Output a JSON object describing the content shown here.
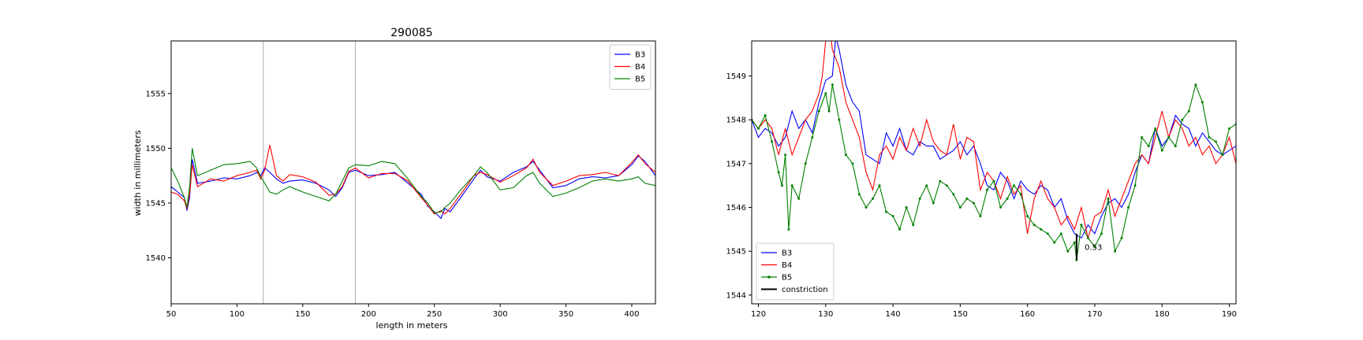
{
  "chart_data": [
    {
      "type": "line",
      "title": "290085",
      "xlabel": "length in meters",
      "ylabel": "width in millimeters",
      "xlim": [
        50,
        418
      ],
      "ylim": [
        1535.8,
        1559.8
      ],
      "xticks": [
        50,
        100,
        150,
        200,
        250,
        300,
        350,
        400
      ],
      "yticks": [
        1540,
        1545,
        1550,
        1555
      ],
      "vlines": [
        120,
        190
      ],
      "legend_position": "upper right",
      "grid": false,
      "series": [
        {
          "name": "B3",
          "color": "#0000ff",
          "x": [
            50,
            55,
            60,
            62,
            64,
            66,
            70,
            80,
            90,
            100,
            110,
            115,
            118,
            121,
            125,
            130,
            135,
            140,
            150,
            160,
            170,
            175,
            180,
            185,
            190,
            200,
            210,
            220,
            230,
            240,
            245,
            250,
            255,
            258,
            262,
            270,
            280,
            285,
            290,
            300,
            310,
            320,
            325,
            330,
            340,
            350,
            360,
            370,
            380,
            390,
            400,
            405,
            410,
            418
          ],
          "y": [
            1546.5,
            1546.0,
            1545.5,
            1544.3,
            1545.5,
            1549.0,
            1546.8,
            1547.0,
            1547.3,
            1547.2,
            1547.5,
            1547.8,
            1547.5,
            1548.2,
            1547.8,
            1547.2,
            1546.8,
            1547.0,
            1547.1,
            1546.8,
            1546.2,
            1545.6,
            1546.4,
            1547.8,
            1548.0,
            1547.5,
            1547.6,
            1547.8,
            1546.8,
            1545.8,
            1544.7,
            1544.2,
            1543.6,
            1544.5,
            1544.2,
            1545.5,
            1547.2,
            1548.0,
            1547.4,
            1547.0,
            1547.8,
            1548.3,
            1548.8,
            1548.0,
            1546.4,
            1546.6,
            1547.2,
            1547.4,
            1547.3,
            1547.5,
            1548.5,
            1549.3,
            1548.8,
            1547.5
          ]
        },
        {
          "name": "B4",
          "color": "#ff0000",
          "x": [
            50,
            55,
            60,
            62,
            64,
            66,
            70,
            80,
            90,
            100,
            110,
            115,
            118,
            121,
            125,
            130,
            135,
            140,
            150,
            160,
            170,
            175,
            180,
            185,
            190,
            200,
            210,
            220,
            230,
            240,
            245,
            250,
            255,
            258,
            262,
            270,
            280,
            285,
            290,
            300,
            310,
            320,
            325,
            330,
            340,
            350,
            360,
            370,
            380,
            390,
            400,
            405,
            410,
            418
          ],
          "y": [
            1546.0,
            1545.8,
            1545.2,
            1544.5,
            1545.8,
            1548.5,
            1546.5,
            1547.2,
            1547.0,
            1547.5,
            1547.8,
            1548.0,
            1547.2,
            1548.0,
            1550.3,
            1547.5,
            1547.0,
            1547.6,
            1547.4,
            1546.9,
            1545.7,
            1545.8,
            1546.5,
            1547.9,
            1548.2,
            1547.3,
            1547.7,
            1547.7,
            1547.0,
            1545.5,
            1544.8,
            1544.0,
            1544.3,
            1544.0,
            1544.5,
            1545.8,
            1547.5,
            1547.8,
            1547.6,
            1546.9,
            1547.5,
            1548.2,
            1549.0,
            1547.8,
            1546.6,
            1547.0,
            1547.5,
            1547.6,
            1547.8,
            1547.5,
            1548.7,
            1549.4,
            1548.6,
            1547.8
          ]
        },
        {
          "name": "B5",
          "color": "#008000",
          "x": [
            50,
            55,
            60,
            62,
            64,
            66,
            70,
            80,
            90,
            100,
            110,
            115,
            118,
            121,
            125,
            130,
            135,
            140,
            150,
            160,
            170,
            175,
            180,
            185,
            190,
            200,
            210,
            220,
            230,
            240,
            245,
            250,
            255,
            258,
            262,
            270,
            280,
            285,
            290,
            300,
            310,
            320,
            325,
            330,
            340,
            350,
            360,
            370,
            380,
            390,
            400,
            405,
            410,
            418
          ],
          "y": [
            1548.2,
            1547.0,
            1545.5,
            1544.6,
            1546.5,
            1550.0,
            1547.5,
            1548.0,
            1548.5,
            1548.6,
            1548.8,
            1548.2,
            1547.4,
            1546.8,
            1546.0,
            1545.8,
            1546.2,
            1546.5,
            1546.0,
            1545.6,
            1545.2,
            1545.8,
            1547.0,
            1548.2,
            1548.5,
            1548.4,
            1548.8,
            1548.6,
            1547.2,
            1545.6,
            1545.0,
            1544.1,
            1544.2,
            1544.6,
            1545.0,
            1546.2,
            1547.5,
            1548.3,
            1547.8,
            1546.2,
            1546.4,
            1547.5,
            1547.8,
            1546.8,
            1545.6,
            1545.9,
            1546.4,
            1547.0,
            1547.2,
            1547.0,
            1547.2,
            1547.4,
            1546.8,
            1546.6
          ]
        }
      ]
    },
    {
      "type": "line",
      "xlim": [
        119,
        191
      ],
      "ylim": [
        1543.8,
        1549.8
      ],
      "xticks": [
        120,
        130,
        140,
        150,
        160,
        170,
        180,
        190
      ],
      "yticks": [
        1544,
        1545,
        1546,
        1547,
        1548,
        1549
      ],
      "legend_position": "lower left",
      "grid": false,
      "annotation": {
        "text": "0.53",
        "x": 169.8,
        "y": 1545.1
      },
      "constriction": {
        "name": "constriction",
        "color": "#000000",
        "x": 167.3,
        "y0": 1544.8,
        "y1": 1545.4
      },
      "series": [
        {
          "name": "B3",
          "color": "#0000ff",
          "marker": false,
          "x": [
            119,
            120,
            121,
            122,
            123,
            124,
            125,
            126,
            127,
            128,
            129,
            130,
            131,
            131.5,
            132,
            133,
            134,
            135,
            136,
            137,
            138,
            139,
            140,
            141,
            142,
            143,
            144,
            145,
            146,
            147,
            148,
            149,
            150,
            151,
            152,
            153,
            154,
            155,
            156,
            157,
            158,
            159,
            160,
            161,
            162,
            163,
            164,
            165,
            166,
            167,
            168,
            169,
            170,
            171,
            172,
            173,
            174,
            175,
            176,
            177,
            178,
            179,
            180,
            181,
            182,
            183,
            184,
            185,
            186,
            187,
            188,
            189,
            190,
            191
          ],
          "y": [
            1548.0,
            1547.6,
            1547.8,
            1547.7,
            1547.4,
            1547.6,
            1548.2,
            1547.8,
            1548.0,
            1547.7,
            1548.4,
            1548.9,
            1549.0,
            1549.9,
            1549.6,
            1548.8,
            1548.4,
            1548.2,
            1547.2,
            1547.1,
            1547.0,
            1547.7,
            1547.4,
            1547.8,
            1547.3,
            1547.2,
            1547.5,
            1547.4,
            1547.4,
            1547.1,
            1547.2,
            1547.3,
            1547.5,
            1547.2,
            1547.4,
            1547.0,
            1546.5,
            1546.4,
            1546.8,
            1546.6,
            1546.2,
            1546.6,
            1546.4,
            1546.3,
            1546.5,
            1546.4,
            1546.0,
            1546.2,
            1545.7,
            1545.4,
            1545.3,
            1545.6,
            1545.4,
            1545.8,
            1546.1,
            1546.2,
            1546.0,
            1546.3,
            1546.8,
            1547.2,
            1547.0,
            1547.8,
            1547.4,
            1547.6,
            1548.1,
            1547.9,
            1547.8,
            1547.4,
            1547.7,
            1547.5,
            1547.3,
            1547.2,
            1547.3,
            1547.4
          ]
        },
        {
          "name": "B4",
          "color": "#ff0000",
          "marker": false,
          "x": [
            119,
            120,
            121,
            122,
            123,
            124,
            125,
            126,
            127,
            128,
            129,
            129.5,
            130,
            130.5,
            131,
            132,
            133,
            134,
            135,
            136,
            137,
            138,
            139,
            140,
            141,
            142,
            143,
            144,
            145,
            146,
            147,
            148,
            149,
            150,
            151,
            152,
            153,
            154,
            155,
            156,
            157,
            158,
            159,
            160,
            161,
            162,
            163,
            164,
            165,
            166,
            167,
            168,
            169,
            170,
            171,
            172,
            173,
            174,
            175,
            176,
            177,
            178,
            179,
            180,
            181,
            182,
            183,
            184,
            185,
            186,
            187,
            188,
            189,
            190,
            191
          ],
          "y": [
            1548.0,
            1547.8,
            1548.0,
            1547.8,
            1547.2,
            1547.8,
            1547.2,
            1547.6,
            1548.0,
            1548.2,
            1548.6,
            1549.0,
            1549.8,
            1550.2,
            1549.6,
            1549.2,
            1548.4,
            1548.0,
            1547.6,
            1546.8,
            1546.4,
            1547.2,
            1547.4,
            1547.1,
            1547.6,
            1547.3,
            1547.8,
            1547.4,
            1548.0,
            1547.5,
            1547.3,
            1547.2,
            1547.9,
            1547.1,
            1547.6,
            1547.5,
            1546.4,
            1546.8,
            1546.6,
            1546.2,
            1546.7,
            1546.3,
            1546.5,
            1545.4,
            1546.2,
            1546.6,
            1546.2,
            1546.0,
            1545.6,
            1545.8,
            1545.5,
            1546.0,
            1545.3,
            1545.8,
            1545.9,
            1546.4,
            1545.8,
            1546.2,
            1546.6,
            1547.0,
            1547.2,
            1547.0,
            1547.6,
            1548.2,
            1547.6,
            1548.0,
            1547.8,
            1547.4,
            1547.6,
            1547.2,
            1547.4,
            1547.0,
            1547.2,
            1547.6,
            1547.0
          ]
        },
        {
          "name": "B5",
          "color": "#008000",
          "marker": true,
          "x": [
            119,
            120,
            121,
            122,
            123,
            123.5,
            124,
            124.5,
            125,
            126,
            127,
            128,
            129,
            130,
            130.5,
            131,
            132,
            133,
            134,
            135,
            136,
            137,
            138,
            139,
            140,
            141,
            142,
            143,
            144,
            145,
            146,
            147,
            148,
            149,
            150,
            151,
            152,
            153,
            154,
            155,
            156,
            157,
            158,
            159,
            160,
            161,
            162,
            163,
            164,
            165,
            166,
            167,
            167.3,
            168,
            169,
            170,
            171,
            172,
            173,
            174,
            175,
            176,
            177,
            178,
            179,
            180,
            181,
            182,
            183,
            184,
            185,
            186,
            187,
            188,
            189,
            190,
            191
          ],
          "y": [
            1548.0,
            1547.8,
            1548.1,
            1547.5,
            1546.8,
            1546.5,
            1547.2,
            1545.5,
            1546.5,
            1546.2,
            1547.0,
            1547.6,
            1548.2,
            1548.6,
            1548.2,
            1548.8,
            1548.0,
            1547.2,
            1547.0,
            1546.3,
            1546.0,
            1546.2,
            1546.5,
            1545.9,
            1545.8,
            1545.5,
            1546.0,
            1545.6,
            1546.2,
            1546.5,
            1546.1,
            1546.6,
            1546.5,
            1546.3,
            1546.0,
            1546.2,
            1546.1,
            1545.8,
            1546.4,
            1546.6,
            1546.0,
            1546.2,
            1546.5,
            1546.3,
            1545.8,
            1545.6,
            1545.5,
            1545.4,
            1545.2,
            1545.4,
            1545.0,
            1545.2,
            1544.8,
            1545.6,
            1545.3,
            1545.1,
            1545.4,
            1546.2,
            1545.0,
            1545.3,
            1546.0,
            1546.5,
            1547.6,
            1547.4,
            1547.8,
            1547.3,
            1547.6,
            1547.4,
            1548.0,
            1548.2,
            1548.8,
            1548.4,
            1547.6,
            1547.5,
            1547.2,
            1547.8,
            1547.9
          ]
        }
      ]
    }
  ]
}
